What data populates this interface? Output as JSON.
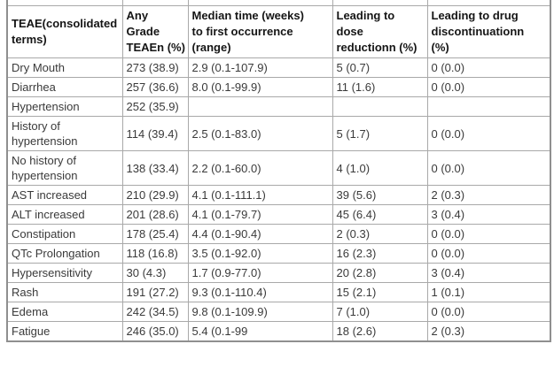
{
  "table": {
    "columns": [
      {
        "label": "TEAE(consolidated\nterms)"
      },
      {
        "label": "Any\nGrade\nTEAEn (%)"
      },
      {
        "label": "Median time (weeks)\nto first occurrence\n(range)"
      },
      {
        "label": "Leading to\ndose\nreductionn (%)"
      },
      {
        "label": "Leading to drug\ndiscontinuationn\n(%)"
      }
    ],
    "rows": [
      {
        "term": "Dry Mouth",
        "any_grade": "273 (38.9)",
        "median_time": "2.9 (0.1-107.9)",
        "dose_reduction": "5 (0.7)",
        "discontinuation": "0 (0.0)"
      },
      {
        "term": "Diarrhea",
        "any_grade": "257 (36.6)",
        "median_time": "8.0 (0.1-99.9)",
        "dose_reduction": "11 (1.6)",
        "discontinuation": "0 (0.0)"
      },
      {
        "term": "Hypertension",
        "any_grade": "252 (35.9)",
        "median_time": "",
        "dose_reduction": "",
        "discontinuation": ""
      },
      {
        "term": "History of hypertension",
        "any_grade": "114 (39.4)",
        "median_time": "2.5 (0.1-83.0)",
        "dose_reduction": "5 (1.7)",
        "discontinuation": "0 (0.0)"
      },
      {
        "term": "No history of hypertension",
        "any_grade": "138 (33.4)",
        "median_time": "2.2 (0.1-60.0)",
        "dose_reduction": "4 (1.0)",
        "discontinuation": "0 (0.0)"
      },
      {
        "term": "AST increased",
        "any_grade": "210 (29.9)",
        "median_time": "4.1 (0.1-111.1)",
        "dose_reduction": "39 (5.6)",
        "discontinuation": "2 (0.3)"
      },
      {
        "term": "ALT increased",
        "any_grade": "201 (28.6)",
        "median_time": "4.1 (0.1-79.7)",
        "dose_reduction": "45 (6.4)",
        "discontinuation": "3 (0.4)"
      },
      {
        "term": "Constipation",
        "any_grade": "178 (25.4)",
        "median_time": "4.4 (0.1-90.4)",
        "dose_reduction": "2 (0.3)",
        "discontinuation": "0 (0.0)"
      },
      {
        "term": "QTc Prolongation",
        "any_grade": "118 (16.8)",
        "median_time": "3.5 (0.1-92.0)",
        "dose_reduction": "16 (2.3)",
        "discontinuation": "0 (0.0)"
      },
      {
        "term": "Hypersensitivity",
        "any_grade": "30 (4.3)",
        "median_time": "1.7 (0.9-77.0)",
        "dose_reduction": "20 (2.8)",
        "discontinuation": "3 (0.4)"
      },
      {
        "term": "Rash",
        "any_grade": "191 (27.2)",
        "median_time": "9.3 (0.1-110.4)",
        "dose_reduction": "15 (2.1)",
        "discontinuation": "1 (0.1)"
      },
      {
        "term": "Edema",
        "any_grade": "242 (34.5)",
        "median_time": "9.8 (0.1-109.9)",
        "dose_reduction": "7 (1.0)",
        "discontinuation": "0 (0.0)"
      },
      {
        "term": "Fatigue",
        "any_grade": "246 (35.0)",
        "median_time": "5.4 (0.1-99",
        "dose_reduction": "18 (2.6)",
        "discontinuation": "2 (0.3)"
      }
    ]
  },
  "colors": {
    "background": "#ffffff",
    "inner_border": "#a9a9a9",
    "outer_border": "#8f8f8f",
    "header_text": "#151515",
    "body_text": "#3a3a3a"
  }
}
